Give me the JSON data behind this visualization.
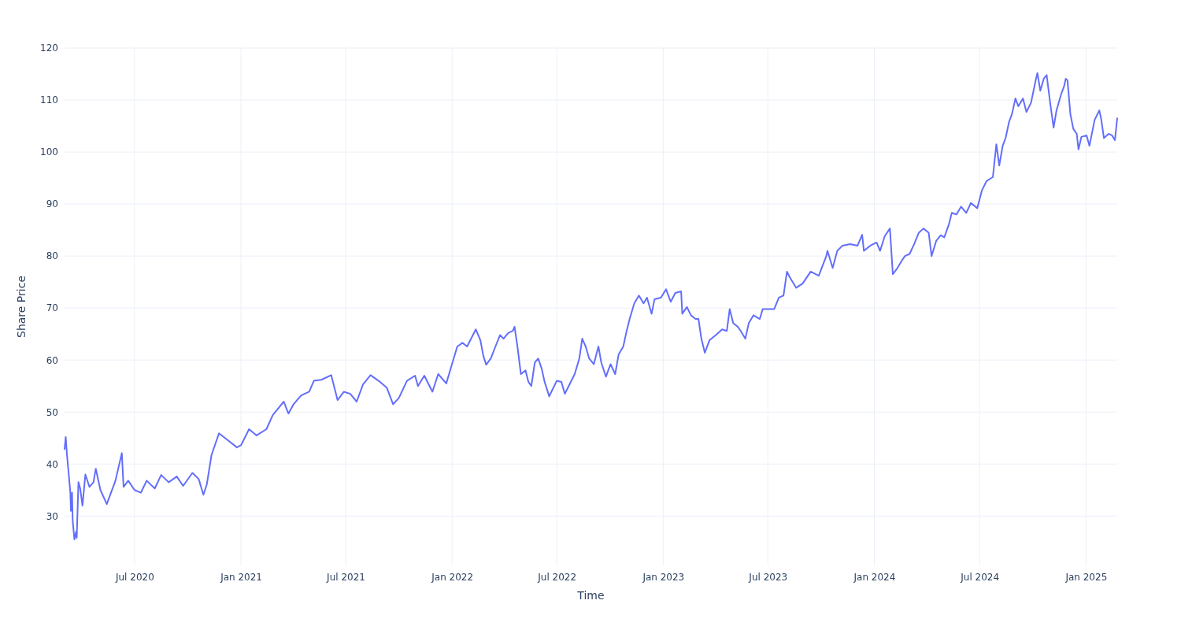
{
  "chart_data": {
    "type": "line",
    "xlabel": "Time",
    "ylabel": "Share Price",
    "grid": true,
    "xlim": [
      "2020-03-02",
      "2025-02-24"
    ],
    "ylim": [
      20.5,
      120
    ],
    "xticks": [
      {
        "value": "2020-07-01",
        "label": "Jul 2020"
      },
      {
        "value": "2021-01-01",
        "label": "Jan 2021"
      },
      {
        "value": "2021-07-01",
        "label": "Jul 2021"
      },
      {
        "value": "2022-01-01",
        "label": "Jan 2022"
      },
      {
        "value": "2022-07-01",
        "label": "Jul 2022"
      },
      {
        "value": "2023-01-01",
        "label": "Jan 2023"
      },
      {
        "value": "2023-07-01",
        "label": "Jul 2023"
      },
      {
        "value": "2024-01-01",
        "label": "Jan 2024"
      },
      {
        "value": "2024-07-01",
        "label": "Jul 2024"
      },
      {
        "value": "2025-01-01",
        "label": "Jan 2025"
      }
    ],
    "yticks": [
      30,
      40,
      50,
      60,
      70,
      80,
      90,
      100,
      110,
      120
    ],
    "series": [
      {
        "color": "#636efa",
        "x": [
          "2020-03-02",
          "2020-03-04",
          "2020-03-06",
          "2020-03-09",
          "2020-03-12",
          "2020-03-13",
          "2020-03-15",
          "2020-03-16",
          "2020-03-19",
          "2020-03-22",
          "2020-03-23",
          "2020-03-26",
          "2020-03-29",
          "2020-04-02",
          "2020-04-07",
          "2020-04-14",
          "2020-04-21",
          "2020-04-25",
          "2020-05-03",
          "2020-05-14",
          "2020-05-29",
          "2020-06-09",
          "2020-06-12",
          "2020-06-20",
          "2020-07-01",
          "2020-07-12",
          "2020-07-22",
          "2020-08-05",
          "2020-08-16",
          "2020-08-29",
          "2020-09-12",
          "2020-09-23",
          "2020-10-09",
          "2020-10-20",
          "2020-10-28",
          "2020-11-03",
          "2020-11-11",
          "2020-11-24",
          "2020-12-08",
          "2020-12-25",
          "2021-01-01",
          "2021-01-15",
          "2021-01-28",
          "2021-02-14",
          "2021-02-25",
          "2021-03-05",
          "2021-03-16",
          "2021-03-24",
          "2021-04-02",
          "2021-04-15",
          "2021-04-29",
          "2021-05-07",
          "2021-05-20",
          "2021-06-06",
          "2021-06-17",
          "2021-06-28",
          "2021-07-09",
          "2021-07-20",
          "2021-07-31",
          "2021-08-13",
          "2021-08-27",
          "2021-09-10",
          "2021-09-21",
          "2021-10-01",
          "2021-10-15",
          "2021-10-29",
          "2021-11-03",
          "2021-11-14",
          "2021-11-28",
          "2021-12-08",
          "2021-12-22",
          "2021-12-30",
          "2022-01-10",
          "2022-01-19",
          "2022-01-27",
          "2022-02-06",
          "2022-02-11",
          "2022-02-19",
          "2022-02-24",
          "2022-03-01",
          "2022-03-09",
          "2022-03-17",
          "2022-03-25",
          "2022-03-31",
          "2022-04-08",
          "2022-04-16",
          "2022-04-19",
          "2022-04-24",
          "2022-04-30",
          "2022-05-08",
          "2022-05-13",
          "2022-05-18",
          "2022-05-24",
          "2022-05-30",
          "2022-06-05",
          "2022-06-10",
          "2022-06-18",
          "2022-06-23",
          "2022-07-01",
          "2022-07-09",
          "2022-07-15",
          "2022-07-23",
          "2022-08-01",
          "2022-08-09",
          "2022-08-14",
          "2022-08-20",
          "2022-08-26",
          "2022-09-03",
          "2022-09-11",
          "2022-09-16",
          "2022-09-24",
          "2022-10-02",
          "2022-10-10",
          "2022-10-16",
          "2022-10-24",
          "2022-10-29",
          "2022-11-04",
          "2022-11-12",
          "2022-11-20",
          "2022-11-28",
          "2022-12-04",
          "2022-12-12",
          "2022-12-17",
          "2022-12-28",
          "2023-01-06",
          "2023-01-14",
          "2023-01-22",
          "2023-02-01",
          "2023-02-03",
          "2023-02-11",
          "2023-02-18",
          "2023-02-26",
          "2023-03-03",
          "2023-03-08",
          "2023-03-14",
          "2023-03-22",
          "2023-04-02",
          "2023-04-13",
          "2023-04-21",
          "2023-04-26",
          "2023-05-02",
          "2023-05-10",
          "2023-05-15",
          "2023-05-23",
          "2023-05-29",
          "2023-06-06",
          "2023-06-17",
          "2023-06-22",
          "2023-07-01",
          "2023-07-12",
          "2023-07-20",
          "2023-07-28",
          "2023-08-03",
          "2023-08-08",
          "2023-08-19",
          "2023-08-30",
          "2023-09-13",
          "2023-09-27",
          "2023-10-10",
          "2023-10-12",
          "2023-10-21",
          "2023-10-29",
          "2023-11-07",
          "2023-11-20",
          "2023-12-03",
          "2023-12-11",
          "2023-12-14",
          "2023-12-25",
          "2024-01-05",
          "2024-01-11",
          "2024-01-19",
          "2024-01-28",
          "2024-02-02",
          "2024-02-10",
          "2024-02-18",
          "2024-02-23",
          "2024-03-02",
          "2024-03-10",
          "2024-03-18",
          "2024-03-26",
          "2024-04-04",
          "2024-04-09",
          "2024-04-17",
          "2024-04-25",
          "2024-05-01",
          "2024-05-09",
          "2024-05-14",
          "2024-05-22",
          "2024-05-30",
          "2024-06-08",
          "2024-06-16",
          "2024-06-27",
          "2024-07-05",
          "2024-07-13",
          "2024-07-24",
          "2024-07-30",
          "2024-08-04",
          "2024-08-10",
          "2024-08-15",
          "2024-08-21",
          "2024-08-26",
          "2024-09-01",
          "2024-09-06",
          "2024-09-14",
          "2024-09-20",
          "2024-09-28",
          "2024-10-06",
          "2024-10-09",
          "2024-10-14",
          "2024-10-20",
          "2024-10-25",
          "2024-10-31",
          "2024-11-06",
          "2024-11-11",
          "2024-11-19",
          "2024-11-24",
          "2024-11-27",
          "2024-11-30",
          "2024-12-05",
          "2024-12-10",
          "2024-12-16",
          "2024-12-19",
          "2024-12-24",
          "2025-01-02",
          "2025-01-07",
          "2025-01-16",
          "2025-01-24",
          "2025-01-27",
          "2025-02-01",
          "2025-02-09",
          "2025-02-15",
          "2025-02-20",
          "2025-02-24"
        ],
        "values": [
          42.9,
          45.2,
          42,
          38.3,
          34.5,
          31,
          34.5,
          29.2,
          25.5,
          27,
          25.8,
          36.5,
          35.3,
          32,
          38,
          35.6,
          36.5,
          39.1,
          35,
          32.3,
          36.8,
          42.1,
          35.6,
          36.8,
          35,
          34.5,
          36.8,
          35.3,
          37.9,
          36.5,
          37.6,
          35.8,
          38.3,
          37.1,
          34.1,
          36.1,
          41.7,
          45.9,
          44.7,
          43.2,
          43.6,
          46.7,
          45.5,
          46.7,
          49.4,
          50.5,
          52,
          49.7,
          51.5,
          53.2,
          53.9,
          56,
          56.2,
          57.1,
          52.3,
          53.9,
          53.5,
          52,
          55.3,
          57.1,
          56,
          54.7,
          51.5,
          52.7,
          56,
          57,
          55,
          57,
          53.9,
          57.3,
          55.5,
          58.5,
          62.6,
          63.3,
          62.6,
          64.8,
          65.9,
          63.8,
          60.8,
          59.1,
          60.3,
          62.6,
          64.8,
          64.1,
          65.2,
          65.6,
          66.4,
          62.6,
          57.3,
          58,
          55.8,
          55,
          59.5,
          60.3,
          58.3,
          55.8,
          53,
          54.2,
          56,
          55.8,
          53.5,
          55.3,
          57.3,
          60.3,
          64.1,
          62.6,
          60.3,
          59.2,
          62.6,
          59.5,
          56.8,
          59.2,
          57.3,
          61.1,
          62.6,
          65.2,
          67.9,
          70.9,
          72.4,
          70.9,
          72,
          68.9,
          71.7,
          72,
          73.6,
          71.2,
          72.9,
          73.2,
          68.9,
          70.2,
          68.6,
          67.9,
          67.9,
          64.1,
          61.4,
          63.8,
          64.8,
          65.9,
          65.6,
          69.8,
          67.1,
          66.4,
          65.6,
          64.1,
          67.1,
          68.6,
          67.9,
          69.8,
          69.8,
          69.8,
          72,
          72.4,
          77,
          75.9,
          73.9,
          74.7,
          77,
          76.2,
          80,
          81,
          77.7,
          81,
          82,
          82.3,
          82,
          84.1,
          81,
          82,
          82.6,
          81,
          83.8,
          85.3,
          76.5,
          77.7,
          79.2,
          80,
          80.4,
          82.3,
          84.5,
          85.3,
          84.5,
          80,
          82.9,
          84,
          83.6,
          86.1,
          88.3,
          88,
          89.5,
          88.3,
          90.2,
          89.2,
          92.6,
          94.4,
          95.2,
          101.5,
          97.4,
          101.2,
          102.7,
          105.8,
          107.3,
          110.3,
          108.8,
          110.3,
          107.7,
          109.5,
          113.8,
          115.2,
          111.8,
          114.1,
          114.8,
          109.5,
          104.7,
          108,
          111.1,
          112.6,
          114.1,
          113.8,
          107.3,
          104.5,
          103.5,
          100.5,
          102.9,
          103.2,
          101.2,
          106.2,
          108,
          106.5,
          102.7,
          103.5,
          103.2,
          102.3,
          106.5
        ]
      }
    ]
  }
}
